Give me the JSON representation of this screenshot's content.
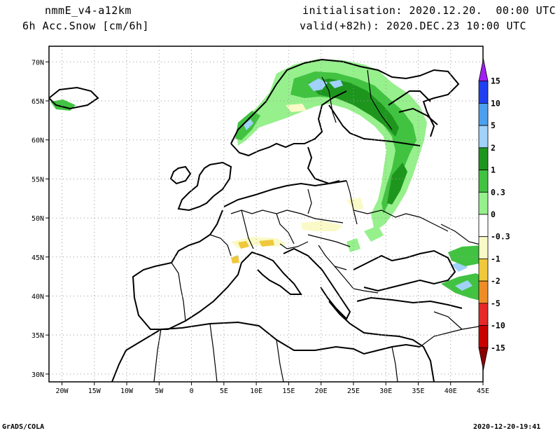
{
  "header": {
    "model": "nmmE_v4-a12km",
    "variable": "6h Acc.Snow [cm/6h]",
    "initialisation": "initialisation: 2020.12.20.  00:00 UTC",
    "valid": "valid(+82h): 2020.DEC.23 10:00 UTC"
  },
  "footer": {
    "left": "GrADS/COLA",
    "right": "2020-12-20-19:41"
  },
  "axes": {
    "x_ticks": [
      "20W",
      "15W",
      "10W",
      "5W",
      "0",
      "5E",
      "10E",
      "15E",
      "20E",
      "25E",
      "30E",
      "35E",
      "40E",
      "45E"
    ],
    "x_values": [
      -20,
      -15,
      -10,
      -5,
      0,
      5,
      10,
      15,
      20,
      25,
      30,
      35,
      40,
      45
    ],
    "y_ticks": [
      "70N",
      "65N",
      "60N",
      "55N",
      "50N",
      "45N",
      "40N",
      "35N",
      "30N"
    ],
    "y_values": [
      70,
      65,
      60,
      55,
      50,
      45,
      40,
      35,
      30
    ],
    "lon_range": [
      -22,
      45
    ],
    "lat_range": [
      29,
      72
    ],
    "grid": "dotted"
  },
  "colorbar": {
    "orientation": "vertical",
    "position": "right",
    "levels": [
      "15",
      "10",
      "5",
      "2",
      "1",
      "0.3",
      "0",
      "-0.3",
      "-1",
      "-2",
      "-5",
      "-10",
      "-15"
    ],
    "colors": [
      "#a020f0",
      "#2040f0",
      "#4ca0ee",
      "#a0d2fa",
      "#1e961e",
      "#41c341",
      "#96f08c",
      "#ffffff",
      "#fafac8",
      "#f0c83c",
      "#f08c28",
      "#e62828",
      "#c80000",
      "#8c0000"
    ]
  },
  "legend_colors": {
    "land": "#ffffff",
    "border": "#000000",
    "grid": "#999999"
  }
}
